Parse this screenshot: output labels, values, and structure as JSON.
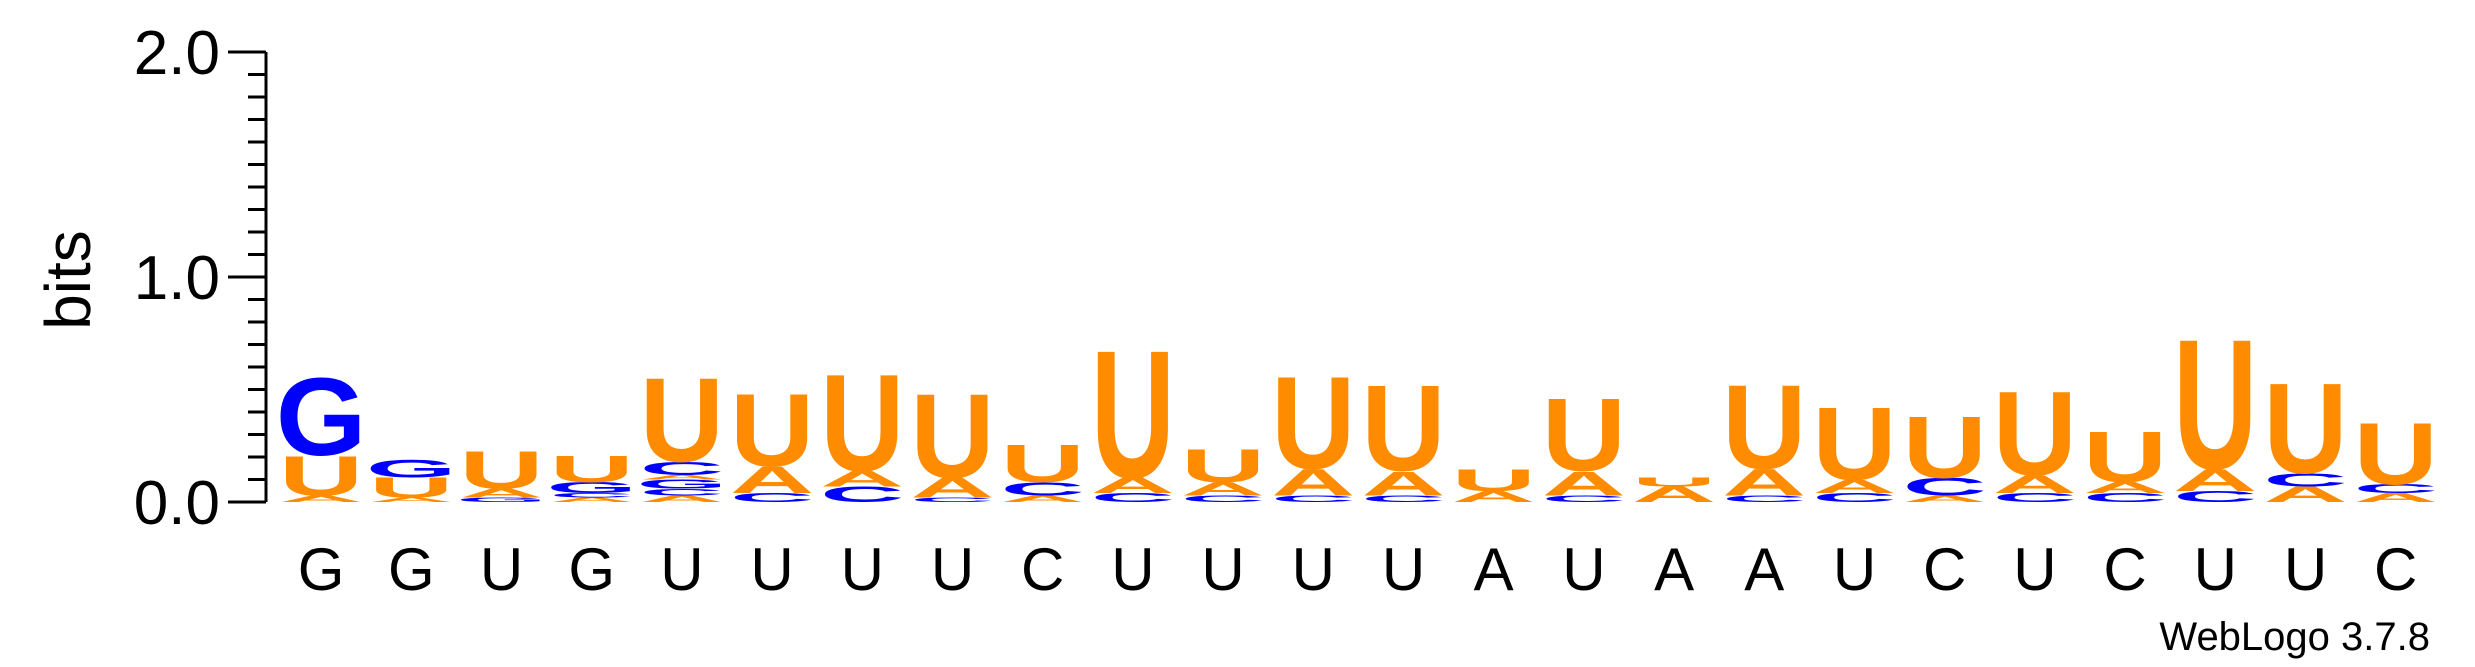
{
  "chart_data": {
    "type": "sequence-logo",
    "title": "",
    "ylabel": "bits",
    "ylim": [
      0,
      2.0
    ],
    "yticks": [
      "0.0",
      "1.0",
      "2.0"
    ],
    "ytick_values": [
      0,
      1,
      2
    ],
    "colors": {
      "A": "#ff8c00",
      "U": "#ff8c00",
      "G": "#0000ff",
      "C": "#0000ff"
    },
    "x_labels": [
      "G",
      "G",
      "U",
      "G",
      "U",
      "U",
      "U",
      "U",
      "C",
      "U",
      "U",
      "U",
      "U",
      "A",
      "U",
      "A",
      "A",
      "U",
      "C",
      "U",
      "C",
      "U",
      "U",
      "C"
    ],
    "positions": [
      {
        "stack": [
          [
            "A",
            0.03
          ],
          [
            "U",
            0.18
          ],
          [
            "G",
            0.35
          ]
        ]
      },
      {
        "stack": [
          [
            "A",
            0.02
          ],
          [
            "U",
            0.09
          ],
          [
            "G",
            0.08
          ]
        ]
      },
      {
        "stack": [
          [
            "G",
            0.02
          ],
          [
            "A",
            0.04
          ],
          [
            "U",
            0.17
          ]
        ]
      },
      {
        "stack": [
          [
            "A",
            0.02
          ],
          [
            "C",
            0.02
          ],
          [
            "G",
            0.05
          ],
          [
            "U",
            0.12
          ]
        ]
      },
      {
        "stack": [
          [
            "A",
            0.03
          ],
          [
            "C",
            0.03
          ],
          [
            "G",
            0.04
          ],
          [
            "A",
            0.02
          ],
          [
            "C",
            0.06
          ],
          [
            "U",
            0.38
          ]
        ]
      },
      {
        "stack": [
          [
            "C",
            0.04
          ],
          [
            "A",
            0.12
          ],
          [
            "U",
            0.33
          ]
        ]
      },
      {
        "stack": [
          [
            "C",
            0.07
          ],
          [
            "A",
            0.07
          ],
          [
            "U",
            0.44
          ]
        ]
      },
      {
        "stack": [
          [
            "C",
            0.02
          ],
          [
            "A",
            0.09
          ],
          [
            "U",
            0.38
          ]
        ]
      },
      {
        "stack": [
          [
            "A",
            0.03
          ],
          [
            "C",
            0.06
          ],
          [
            "U",
            0.17
          ]
        ]
      },
      {
        "stack": [
          [
            "C",
            0.04
          ],
          [
            "A",
            0.07
          ],
          [
            "U",
            0.58
          ]
        ]
      },
      {
        "stack": [
          [
            "C",
            0.03
          ],
          [
            "A",
            0.06
          ],
          [
            "U",
            0.15
          ]
        ]
      },
      {
        "stack": [
          [
            "C",
            0.03
          ],
          [
            "A",
            0.12
          ],
          [
            "U",
            0.42
          ]
        ]
      },
      {
        "stack": [
          [
            "C",
            0.03
          ],
          [
            "A",
            0.11
          ],
          [
            "U",
            0.39
          ]
        ]
      },
      {
        "stack": [
          [
            "A",
            0.05
          ],
          [
            "U",
            0.1
          ]
        ]
      },
      {
        "stack": [
          [
            "C",
            0.03
          ],
          [
            "A",
            0.11
          ],
          [
            "U",
            0.33
          ]
        ]
      },
      {
        "stack": [
          [
            "A",
            0.07
          ],
          [
            "U",
            0.04
          ]
        ]
      },
      {
        "stack": [
          [
            "C",
            0.03
          ],
          [
            "A",
            0.12
          ],
          [
            "U",
            0.38
          ]
        ]
      },
      {
        "stack": [
          [
            "C",
            0.04
          ],
          [
            "A",
            0.06
          ],
          [
            "U",
            0.33
          ]
        ]
      },
      {
        "stack": [
          [
            "A",
            0.03
          ],
          [
            "C",
            0.08
          ],
          [
            "U",
            0.28
          ]
        ]
      },
      {
        "stack": [
          [
            "C",
            0.04
          ],
          [
            "A",
            0.08
          ],
          [
            "U",
            0.38
          ]
        ]
      },
      {
        "stack": [
          [
            "C",
            0.04
          ],
          [
            "A",
            0.05
          ],
          [
            "U",
            0.23
          ]
        ]
      },
      {
        "stack": [
          [
            "C",
            0.05
          ],
          [
            "A",
            0.1
          ],
          [
            "U",
            0.59
          ]
        ]
      },
      {
        "stack": [
          [
            "A",
            0.07
          ],
          [
            "C",
            0.06
          ],
          [
            "U",
            0.41
          ]
        ]
      },
      {
        "stack": [
          [
            "A",
            0.04
          ],
          [
            "C",
            0.04
          ],
          [
            "U",
            0.28
          ]
        ]
      }
    ],
    "credit": "WebLogo 3.7.8"
  }
}
